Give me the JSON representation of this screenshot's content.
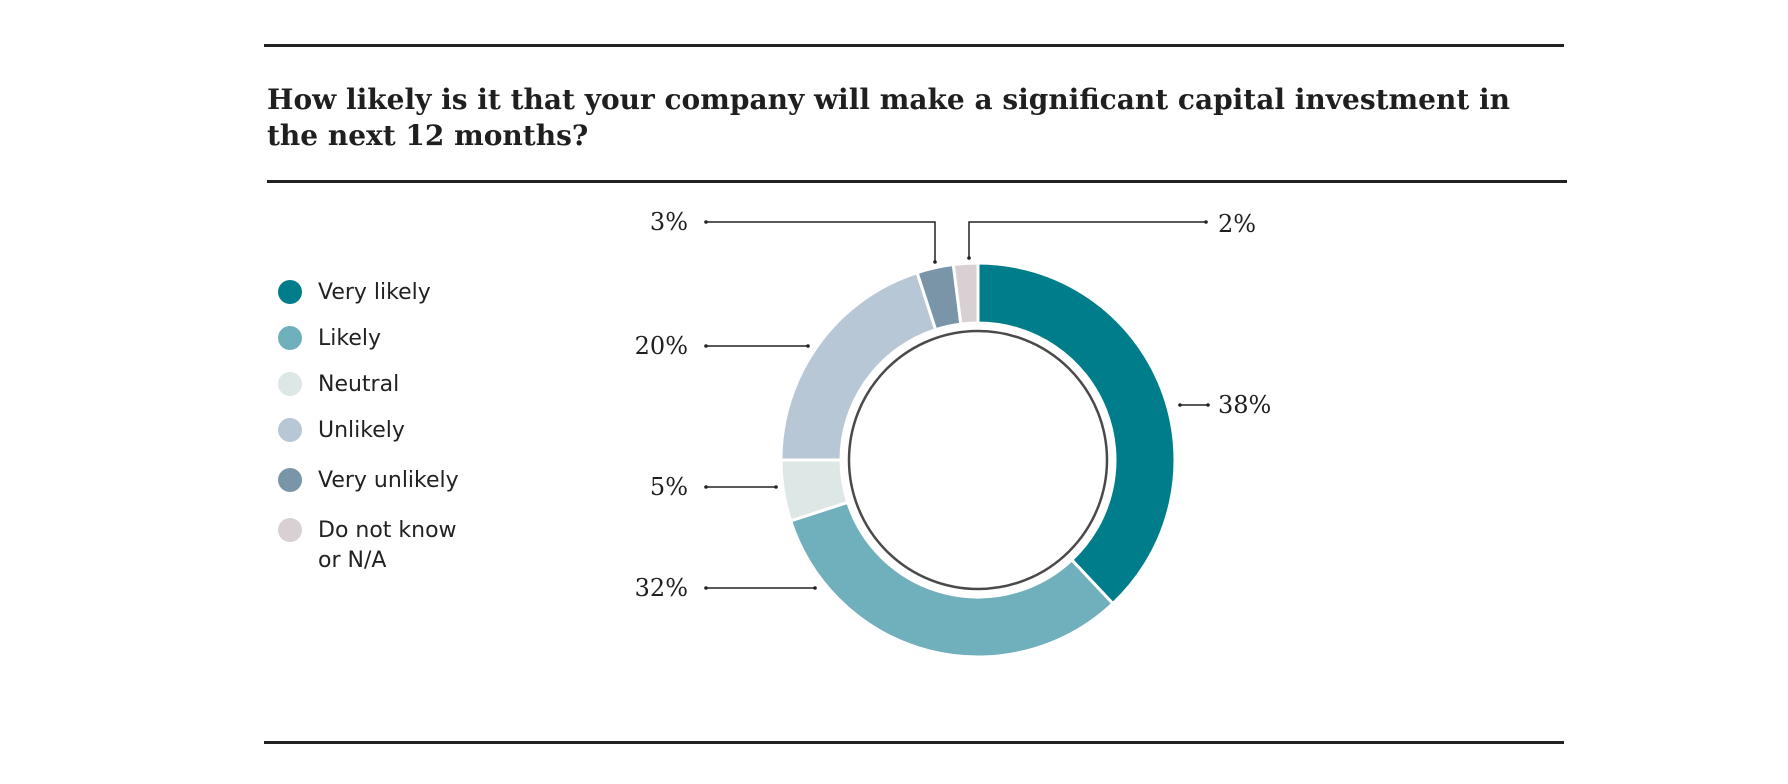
{
  "title": "How likely is it that your company will make a significant capital investment in the next 12 months?",
  "chart_data": {
    "type": "pie",
    "variant": "donut",
    "title": "How likely is it that your company will make a significant capital investment in the next 12 months?",
    "legend_position": "left",
    "slices": [
      {
        "label": "Very likely",
        "value": 38,
        "display": "38%",
        "color": "#007d8a"
      },
      {
        "label": "Likely",
        "value": 32,
        "display": "32%",
        "color": "#70afbc"
      },
      {
        "label": "Neutral",
        "value": 5,
        "display": "5%",
        "color": "#dde8e6"
      },
      {
        "label": "Unlikely",
        "value": 20,
        "display": "20%",
        "color": "#b8c7d5"
      },
      {
        "label": "Very unlikely",
        "value": 3,
        "display": "3%",
        "color": "#7a94a8"
      },
      {
        "label": "Do not know or N/A",
        "value": 2,
        "display": "2%",
        "color": "#d8d0d3"
      }
    ]
  }
}
